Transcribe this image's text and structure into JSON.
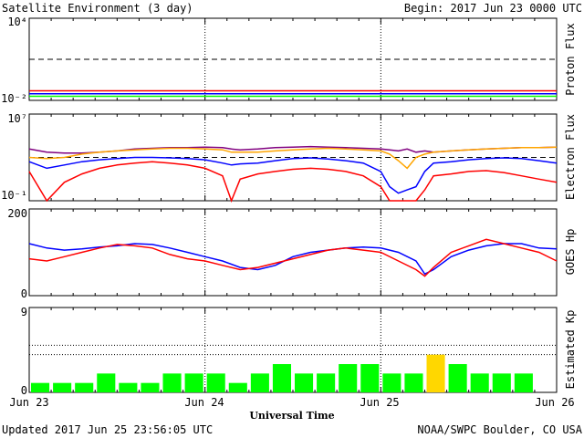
{
  "header": {
    "title": "Satellite Environment (3 day)",
    "begin": "Begin:  2017 Jun 23 0000 UTC"
  },
  "footer": {
    "updated": "Updated 2017 Jun 25 23:56:05 UTC",
    "credit": "NOAA/SWPC Boulder, CO USA"
  },
  "chart_data": [
    {
      "type": "line",
      "panel": "proton",
      "ylabel": "Proton Flux",
      "yscale": "log",
      "ylim": [
        0.01,
        10000
      ],
      "yticks_labeled": [
        "10⁴",
        "10⁻²"
      ],
      "threshold": 10,
      "x": [
        0,
        0.25,
        0.5,
        0.75,
        1.0,
        1.25,
        1.5,
        1.75,
        2.0,
        2.25,
        2.5,
        2.75,
        3.0
      ],
      "series": [
        {
          "color": "#ff0000",
          "values": [
            0.05,
            0.05,
            0.05,
            0.05,
            0.05,
            0.05,
            0.05,
            0.05,
            0.05,
            0.05,
            0.05,
            0.05,
            0.05
          ]
        },
        {
          "color": "#0000ff",
          "values": [
            0.03,
            0.03,
            0.03,
            0.03,
            0.03,
            0.03,
            0.03,
            0.03,
            0.03,
            0.03,
            0.03,
            0.03,
            0.03
          ]
        },
        {
          "color": "#00ff00",
          "values": [
            0.02,
            0.02,
            0.02,
            0.02,
            0.02,
            0.02,
            0.02,
            0.02,
            0.02,
            0.02,
            0.02,
            0.02,
            0.02
          ]
        }
      ]
    },
    {
      "type": "line",
      "panel": "electron",
      "ylabel": "Electron Flux",
      "yscale": "log",
      "ylim": [
        0.1,
        10000000
      ],
      "yticks_labeled": [
        "10⁷",
        "10⁻¹"
      ],
      "threshold": 1000,
      "x": [
        0,
        0.1,
        0.2,
        0.3,
        0.4,
        0.5,
        0.6,
        0.7,
        0.8,
        0.9,
        1.0,
        1.1,
        1.15,
        1.2,
        1.3,
        1.4,
        1.5,
        1.6,
        1.7,
        1.8,
        1.9,
        2.0,
        2.05,
        2.1,
        2.15,
        2.2,
        2.25,
        2.3,
        2.4,
        2.5,
        2.6,
        2.7,
        2.8,
        2.9,
        3.0
      ],
      "series": [
        {
          "color": "#800080",
          "values": [
            6000,
            3000,
            2500,
            2500,
            3000,
            4000,
            6000,
            7000,
            8000,
            8000,
            9000,
            8000,
            6000,
            5000,
            6000,
            8000,
            9000,
            10000,
            9000,
            8000,
            7000,
            6000,
            5000,
            4000,
            6000,
            3000,
            4000,
            3000,
            4000,
            5000,
            6000,
            7000,
            8000,
            8000,
            9000
          ]
        },
        {
          "color": "#ffa500",
          "values": [
            1000,
            800,
            1000,
            2000,
            3000,
            4000,
            5000,
            6000,
            7000,
            7000,
            6000,
            5000,
            3000,
            3000,
            3000,
            4000,
            5000,
            6000,
            7000,
            6000,
            5000,
            4000,
            2000,
            500,
            100,
            1000,
            2000,
            3000,
            4000,
            5000,
            6000,
            7000,
            8000,
            8000,
            9000
          ]
        },
        {
          "color": "#0000ff",
          "values": [
            400,
            100,
            200,
            400,
            600,
            800,
            1000,
            1000,
            900,
            800,
            600,
            300,
            200,
            250,
            300,
            500,
            800,
            900,
            700,
            500,
            300,
            50,
            2,
            0.5,
            1,
            2,
            50,
            300,
            400,
            600,
            800,
            900,
            800,
            500,
            300
          ]
        },
        {
          "color": "#ff0000",
          "values": [
            50,
            0.1,
            5,
            30,
            100,
            200,
            300,
            400,
            300,
            200,
            100,
            20,
            0.1,
            10,
            30,
            50,
            80,
            100,
            80,
            50,
            20,
            2,
            0.1,
            0.1,
            0.1,
            0.1,
            1,
            20,
            30,
            50,
            60,
            40,
            20,
            10,
            5
          ]
        }
      ]
    },
    {
      "type": "line",
      "panel": "hp",
      "ylabel": "GOES Hp",
      "ylim": [
        0,
        200
      ],
      "yticks_labeled": [
        "200",
        "0"
      ],
      "x": [
        0,
        0.1,
        0.2,
        0.3,
        0.4,
        0.5,
        0.6,
        0.7,
        0.8,
        0.9,
        1.0,
        1.1,
        1.2,
        1.3,
        1.4,
        1.5,
        1.6,
        1.7,
        1.8,
        1.9,
        2.0,
        2.1,
        2.2,
        2.25,
        2.3,
        2.4,
        2.5,
        2.6,
        2.7,
        2.8,
        2.9,
        3.0
      ],
      "series": [
        {
          "color": "#0000ff",
          "values": [
            120,
            110,
            105,
            108,
            112,
            115,
            120,
            118,
            110,
            100,
            90,
            80,
            65,
            60,
            70,
            90,
            100,
            105,
            110,
            112,
            110,
            100,
            80,
            50,
            60,
            90,
            105,
            115,
            120,
            120,
            110,
            108
          ]
        },
        {
          "color": "#ff0000",
          "values": [
            85,
            80,
            90,
            100,
            110,
            118,
            115,
            110,
            95,
            85,
            80,
            70,
            60,
            65,
            75,
            85,
            95,
            105,
            110,
            105,
            100,
            80,
            60,
            45,
            65,
            100,
            115,
            130,
            120,
            110,
            100,
            80
          ]
        }
      ]
    },
    {
      "type": "bar",
      "panel": "kp",
      "ylabel": "Estimated Kp",
      "ylim": [
        0,
        9
      ],
      "yticks_labeled": [
        "9",
        "0"
      ],
      "values": [
        1,
        1,
        1,
        2,
        1,
        1,
        2,
        2,
        2,
        1,
        2,
        3,
        2,
        2,
        3,
        3,
        2,
        2,
        4,
        3,
        2,
        2,
        2
      ],
      "colors": [
        "#00ff00",
        "#00ff00",
        "#00ff00",
        "#00ff00",
        "#00ff00",
        "#00ff00",
        "#00ff00",
        "#00ff00",
        "#00ff00",
        "#00ff00",
        "#00ff00",
        "#00ff00",
        "#00ff00",
        "#00ff00",
        "#00ff00",
        "#00ff00",
        "#00ff00",
        "#00ff00",
        "#ffd700",
        "#00ff00",
        "#00ff00",
        "#00ff00",
        "#00ff00"
      ]
    }
  ],
  "x_axis": {
    "xlim": [
      0,
      3
    ],
    "ticks": [
      "Jun 23",
      "Jun 24",
      "Jun 25",
      "Jun 26"
    ],
    "label": "Universal Time"
  }
}
